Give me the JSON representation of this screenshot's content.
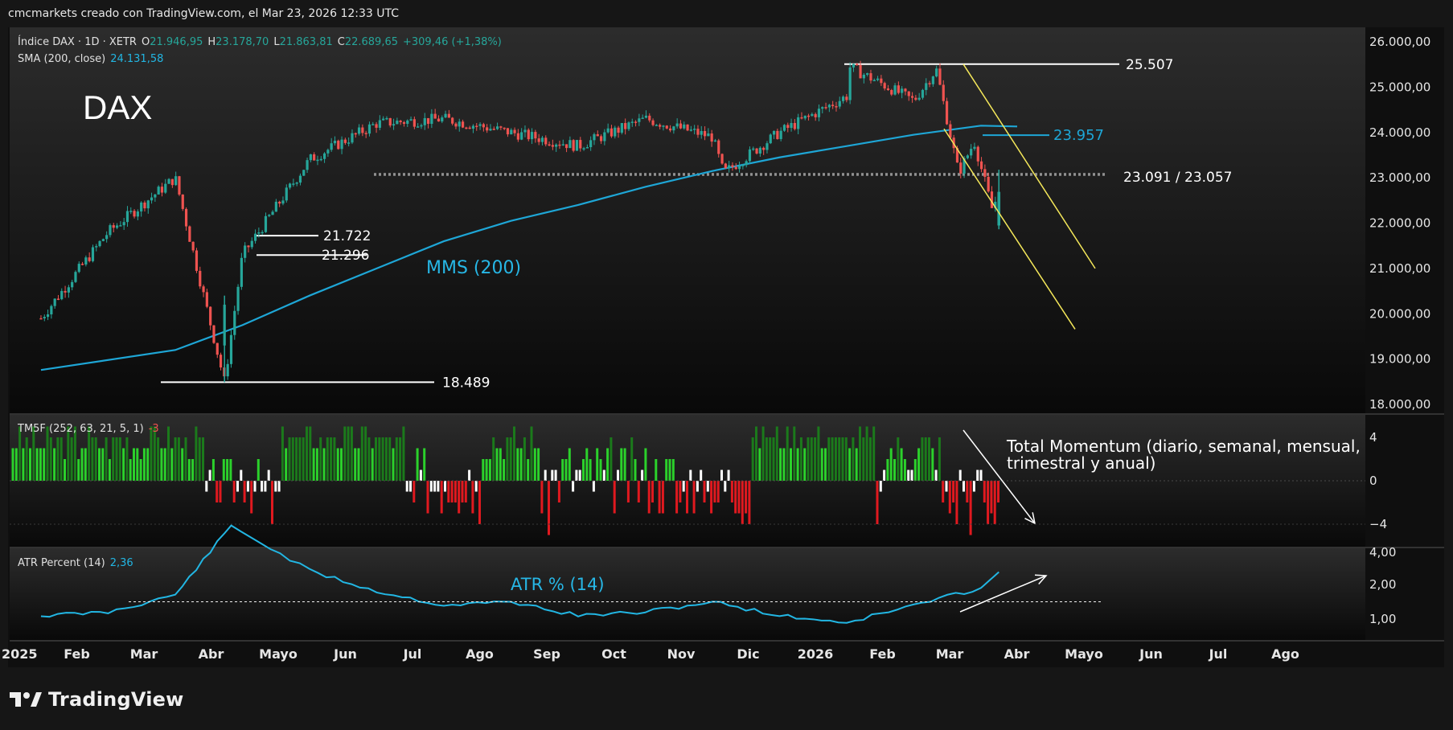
{
  "header": {
    "credit": "cmcmarkets creado con TradingView.com, el Mar 23, 2026 12:33 UTC"
  },
  "legend": {
    "symbol": "Índice DAX · 1D · XETR",
    "o_label": "O",
    "o_value": "21.946,95",
    "h_label": "H",
    "h_value": "23.178,70",
    "l_label": "L",
    "l_value": "21.863,81",
    "c_label": "C",
    "c_value": "22.689,65",
    "change": "+309,46 (+1,38%)",
    "sma_label": "SMA (200, close)",
    "sma_value": "24.131,58",
    "tm5f_label": "TM5F (252, 63, 21, 5, 1)",
    "tm5f_value": "-3",
    "atr_label": "ATR Percent (14)",
    "atr_value": "2,36"
  },
  "colors": {
    "up": "#26a69a",
    "down": "#ef5350",
    "sma": "#1ea6d6",
    "trend": "#f5e85a",
    "hist_pos_strong": "#1b7a1b",
    "hist_pos": "#2bd12b",
    "hist_neg": "#e0191f",
    "hist_neutral": "#ffffff",
    "atr_line": "#22b6e3"
  },
  "annotations": {
    "title": "DAX",
    "mms_label": "MMS (200)",
    "atr_label": "ATR % (14)",
    "momentum_line1": "Total Momentum (diario, semanal, mensual,",
    "momentum_line2": "trimestral y anual)"
  },
  "brand": {
    "name": "TradingView"
  },
  "chart_data": [
    {
      "type": "line",
      "title": "Índice DAX · 1D · XETR",
      "y_scale": "linear",
      "ylim": [
        18000,
        26000
      ],
      "y_ticks": [
        "26.000,00",
        "25.000,00",
        "24.000,00",
        "23.000,00",
        "22.000,00",
        "21.000,00",
        "20.000,00",
        "19.000,00",
        "18.000,00"
      ],
      "x_ticks": [
        "2025",
        "Feb",
        "Mar",
        "Abr",
        "Mayo",
        "Jun",
        "Jul",
        "Ago",
        "Sep",
        "Oct",
        "Nov",
        "Dic",
        "2026",
        "Feb",
        "Mar",
        "Abr",
        "Mayo",
        "Jun",
        "Jul",
        "Ago"
      ],
      "price_series": {
        "name": "Índice DAX",
        "x": [
          "2025-01",
          "2025-02",
          "2025-03",
          "2025-04-07",
          "2025-04-15",
          "2025-05",
          "2025-06",
          "2025-07",
          "2025-08",
          "2025-09",
          "2025-10",
          "2025-11",
          "2025-11-20",
          "2025-12",
          "2026-01",
          "2026-01-14",
          "2026-02",
          "2026-02-25",
          "2026-03-05",
          "2026-03-12",
          "2026-03-20",
          "2026-03-23"
        ],
        "values": [
          19900,
          21800,
          23000,
          18489,
          21296,
          23400,
          24200,
          24300,
          24000,
          23700,
          24300,
          23900,
          23100,
          24000,
          24800,
          25507,
          24700,
          25400,
          23100,
          23800,
          22300,
          22690
        ]
      },
      "sma_series": {
        "name": "SMA (200, close)",
        "x": [
          "2025-01",
          "2025-03",
          "2025-04",
          "2025-05",
          "2025-06",
          "2025-07",
          "2025-08",
          "2025-09",
          "2025-10",
          "2025-11",
          "2025-12",
          "2026-01",
          "2026-02",
          "2026-03",
          "2026-03-23"
        ],
        "values": [
          18760,
          19200,
          19750,
          20400,
          21000,
          21600,
          22050,
          22400,
          22800,
          23150,
          23450,
          23700,
          23950,
          24150,
          24132
        ]
      },
      "levels": [
        {
          "label": "25.507",
          "value": 25507
        },
        {
          "label": "23.957",
          "value": 23957
        },
        {
          "label": "23.091 / 23.057",
          "values": [
            23091,
            23057
          ]
        },
        {
          "label": "21.722",
          "value": 21722
        },
        {
          "label": "21.296",
          "value": 21296
        },
        {
          "label": "18.489",
          "value": 18489
        }
      ]
    },
    {
      "type": "bar",
      "title": "TM5F (252, 63, 21, 5, 1)",
      "ylim": [
        -5,
        5
      ],
      "y_ticks": [
        "4",
        "0",
        "−4"
      ],
      "segments": [
        {
          "period": "2025-01 to 2025-03",
          "value_range": [
            2,
            5
          ]
        },
        {
          "period": "2025-04",
          "value_range": [
            -3,
            2
          ]
        },
        {
          "period": "2025-05 to 2025-06",
          "value_range": [
            3,
            5
          ]
        },
        {
          "period": "2025-07",
          "value_range": [
            -3,
            3
          ]
        },
        {
          "period": "2025-08",
          "value_range": [
            2,
            5
          ]
        },
        {
          "period": "2025-09 to 2025-10",
          "value_range": [
            -3,
            4
          ]
        },
        {
          "period": "2025-11",
          "value_range": [
            -3,
            1
          ]
        },
        {
          "period": "2025-12 to 2026-01",
          "value_range": [
            3,
            5
          ]
        },
        {
          "period": "2026-02",
          "value_range": [
            1,
            5
          ]
        },
        {
          "period": "2026-03",
          "value_range": [
            -5,
            1
          ]
        }
      ]
    },
    {
      "type": "line",
      "title": "ATR Percent (14)",
      "ylim": [
        0.5,
        4.0
      ],
      "y_ticks": [
        "4,00",
        "2,00",
        "1,00"
      ],
      "series": [
        {
          "name": "ATR Percent (14)",
          "x": [
            "2025-01",
            "2025-02",
            "2025-03",
            "2025-04-10",
            "2025-05",
            "2025-06",
            "2025-07",
            "2025-08",
            "2025-09",
            "2025-10",
            "2025-11",
            "2025-12",
            "2026-01",
            "2026-02",
            "2026-03",
            "2026-03-23"
          ],
          "values": [
            1.1,
            1.2,
            1.7,
            3.7,
            2.4,
            1.8,
            1.4,
            1.5,
            1.1,
            1.2,
            1.5,
            1.1,
            0.9,
            1.4,
            1.9,
            2.36
          ]
        }
      ],
      "levels": [
        {
          "value": 1.5
        }
      ]
    }
  ]
}
